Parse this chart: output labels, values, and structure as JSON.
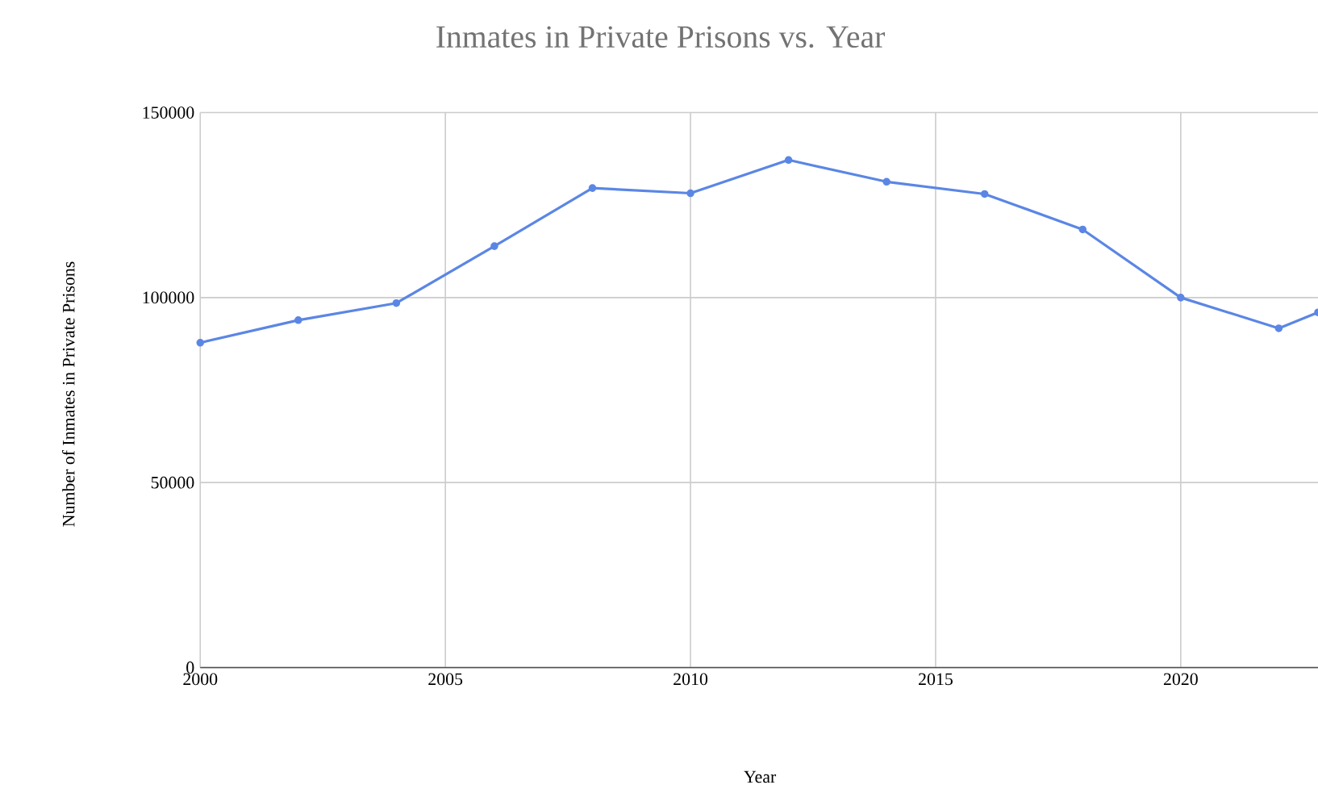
{
  "chart_data": {
    "type": "line",
    "title": "Inmates in Private Prisons vs. Year",
    "xlabel": "Year",
    "ylabel": "Number of Inmates in Private Prisons",
    "x": [
      2000,
      2002,
      2004,
      2006,
      2008,
      2010,
      2012,
      2014,
      2016,
      2018,
      2020,
      2022,
      2022.8
    ],
    "series": [
      {
        "color": "#5b86e5",
        "values": [
          87800,
          93900,
          98500,
          113900,
          129600,
          128200,
          137200,
          131300,
          128000,
          118400,
          100000,
          91700,
          96000
        ]
      }
    ],
    "xlim": [
      2000,
      2022.8
    ],
    "ylim": [
      0,
      150000
    ],
    "xticks": [
      2000,
      2005,
      2010,
      2015,
      2020
    ],
    "yticks": [
      0,
      50000,
      100000,
      150000
    ],
    "grid": true,
    "marker": "circle",
    "line_style": "solid"
  }
}
